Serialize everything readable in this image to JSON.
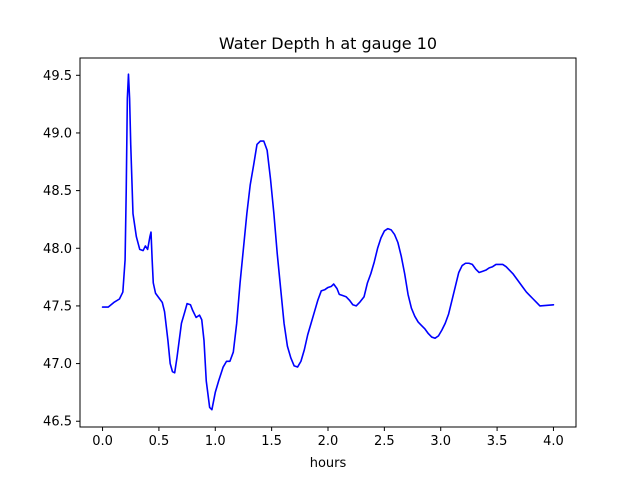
{
  "chart_data": {
    "type": "line",
    "title": "Water Depth h at gauge 10",
    "xlabel": "hours",
    "ylabel": "",
    "xlim": [
      -0.2,
      4.2
    ],
    "ylim": [
      46.45,
      49.65
    ],
    "xticks": [
      0.0,
      0.5,
      1.0,
      1.5,
      2.0,
      2.5,
      3.0,
      3.5,
      4.0
    ],
    "xtick_labels": [
      "0.0",
      "0.5",
      "1.0",
      "1.5",
      "2.0",
      "2.5",
      "3.0",
      "3.5",
      "4.0"
    ],
    "yticks": [
      46.5,
      47.0,
      47.5,
      48.0,
      48.5,
      49.0,
      49.5
    ],
    "ytick_labels": [
      "46.5",
      "47.0",
      "47.5",
      "48.0",
      "48.5",
      "49.0",
      "49.5"
    ],
    "grid": false,
    "series": [
      {
        "color": "#0000ff",
        "points": [
          [
            0.0,
            47.49
          ],
          [
            0.05,
            47.49
          ],
          [
            0.1,
            47.53
          ],
          [
            0.15,
            47.56
          ],
          [
            0.18,
            47.62
          ],
          [
            0.2,
            47.9
          ],
          [
            0.21,
            48.5
          ],
          [
            0.22,
            49.3
          ],
          [
            0.23,
            49.51
          ],
          [
            0.24,
            49.3
          ],
          [
            0.25,
            48.9
          ],
          [
            0.27,
            48.3
          ],
          [
            0.3,
            48.1
          ],
          [
            0.33,
            47.99
          ],
          [
            0.36,
            47.98
          ],
          [
            0.38,
            48.02
          ],
          [
            0.4,
            47.99
          ],
          [
            0.42,
            48.1
          ],
          [
            0.43,
            48.14
          ],
          [
            0.44,
            47.9
          ],
          [
            0.45,
            47.7
          ],
          [
            0.47,
            47.61
          ],
          [
            0.5,
            47.57
          ],
          [
            0.53,
            47.53
          ],
          [
            0.55,
            47.45
          ],
          [
            0.58,
            47.2
          ],
          [
            0.6,
            47.0
          ],
          [
            0.62,
            46.93
          ],
          [
            0.64,
            46.92
          ],
          [
            0.66,
            47.05
          ],
          [
            0.7,
            47.35
          ],
          [
            0.73,
            47.45
          ],
          [
            0.75,
            47.52
          ],
          [
            0.78,
            47.51
          ],
          [
            0.8,
            47.46
          ],
          [
            0.83,
            47.4
          ],
          [
            0.86,
            47.42
          ],
          [
            0.88,
            47.38
          ],
          [
            0.9,
            47.2
          ],
          [
            0.92,
            46.85
          ],
          [
            0.95,
            46.62
          ],
          [
            0.97,
            46.6
          ],
          [
            1.0,
            46.75
          ],
          [
            1.03,
            46.85
          ],
          [
            1.07,
            46.97
          ],
          [
            1.1,
            47.02
          ],
          [
            1.13,
            47.02
          ],
          [
            1.16,
            47.1
          ],
          [
            1.19,
            47.35
          ],
          [
            1.22,
            47.7
          ],
          [
            1.25,
            48.0
          ],
          [
            1.28,
            48.3
          ],
          [
            1.31,
            48.55
          ],
          [
            1.34,
            48.72
          ],
          [
            1.37,
            48.9
          ],
          [
            1.4,
            48.93
          ],
          [
            1.43,
            48.93
          ],
          [
            1.46,
            48.85
          ],
          [
            1.49,
            48.6
          ],
          [
            1.52,
            48.3
          ],
          [
            1.55,
            47.95
          ],
          [
            1.58,
            47.65
          ],
          [
            1.61,
            47.35
          ],
          [
            1.64,
            47.15
          ],
          [
            1.67,
            47.05
          ],
          [
            1.7,
            46.98
          ],
          [
            1.73,
            46.97
          ],
          [
            1.76,
            47.02
          ],
          [
            1.79,
            47.12
          ],
          [
            1.82,
            47.25
          ],
          [
            1.85,
            47.35
          ],
          [
            1.88,
            47.45
          ],
          [
            1.91,
            47.55
          ],
          [
            1.94,
            47.63
          ],
          [
            1.97,
            47.64
          ],
          [
            2.0,
            47.66
          ],
          [
            2.03,
            47.67
          ],
          [
            2.05,
            47.69
          ],
          [
            2.08,
            47.65
          ],
          [
            2.1,
            47.6
          ],
          [
            2.13,
            47.59
          ],
          [
            2.16,
            47.58
          ],
          [
            2.19,
            47.55
          ],
          [
            2.22,
            47.51
          ],
          [
            2.25,
            47.5
          ],
          [
            2.28,
            47.53
          ],
          [
            2.32,
            47.58
          ],
          [
            2.35,
            47.7
          ],
          [
            2.38,
            47.78
          ],
          [
            2.41,
            47.88
          ],
          [
            2.44,
            48.0
          ],
          [
            2.47,
            48.09
          ],
          [
            2.5,
            48.15
          ],
          [
            2.53,
            48.17
          ],
          [
            2.56,
            48.16
          ],
          [
            2.59,
            48.12
          ],
          [
            2.62,
            48.05
          ],
          [
            2.65,
            47.93
          ],
          [
            2.68,
            47.78
          ],
          [
            2.71,
            47.6
          ],
          [
            2.74,
            47.48
          ],
          [
            2.77,
            47.41
          ],
          [
            2.8,
            47.36
          ],
          [
            2.83,
            47.33
          ],
          [
            2.86,
            47.3
          ],
          [
            2.89,
            47.26
          ],
          [
            2.92,
            47.23
          ],
          [
            2.95,
            47.22
          ],
          [
            2.98,
            47.24
          ],
          [
            3.01,
            47.29
          ],
          [
            3.04,
            47.35
          ],
          [
            3.07,
            47.43
          ],
          [
            3.1,
            47.55
          ],
          [
            3.13,
            47.67
          ],
          [
            3.16,
            47.79
          ],
          [
            3.19,
            47.85
          ],
          [
            3.22,
            47.87
          ],
          [
            3.25,
            47.87
          ],
          [
            3.28,
            47.86
          ],
          [
            3.31,
            47.82
          ],
          [
            3.34,
            47.79
          ],
          [
            3.37,
            47.8
          ],
          [
            3.4,
            47.81
          ],
          [
            3.43,
            47.83
          ],
          [
            3.46,
            47.84
          ],
          [
            3.49,
            47.86
          ],
          [
            3.52,
            47.86
          ],
          [
            3.55,
            47.86
          ],
          [
            3.58,
            47.84
          ],
          [
            3.61,
            47.81
          ],
          [
            3.64,
            47.78
          ],
          [
            3.67,
            47.74
          ],
          [
            3.7,
            47.7
          ],
          [
            3.73,
            47.66
          ],
          [
            3.76,
            47.62
          ],
          [
            3.79,
            47.59
          ],
          [
            3.82,
            47.56
          ],
          [
            3.85,
            47.53
          ],
          [
            3.88,
            47.5
          ],
          [
            4.0,
            47.51
          ]
        ]
      }
    ]
  }
}
